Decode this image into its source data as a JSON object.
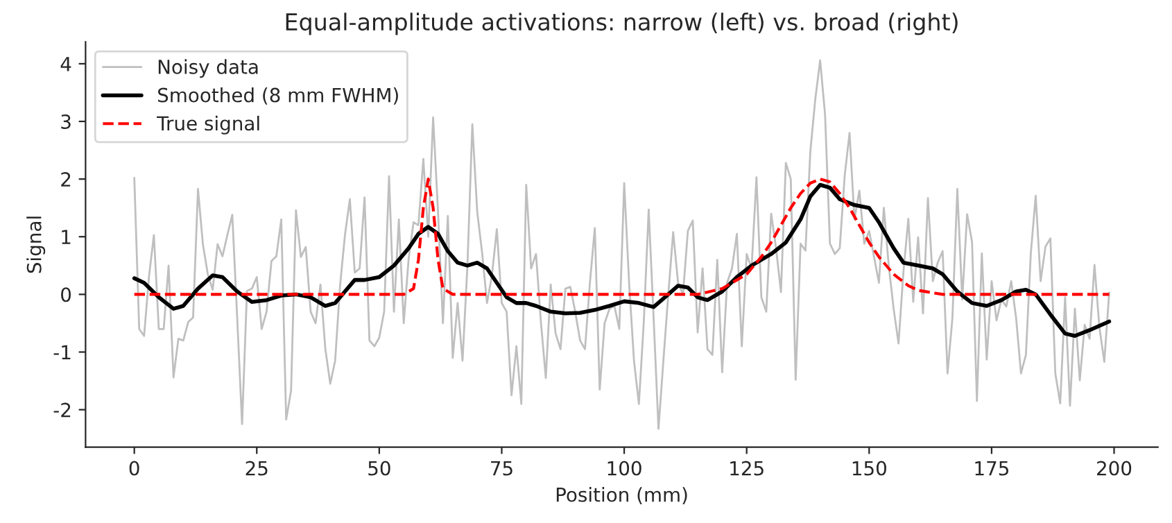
{
  "chart_data": {
    "type": "line",
    "title": "Equal-amplitude activations: narrow (left) vs. broad (right)",
    "xlabel": "Position (mm)",
    "ylabel": "Signal",
    "xlim": [
      -9.95,
      208.95
    ],
    "ylim": [
      -2.65,
      4.38
    ],
    "xticks": [
      0,
      25,
      50,
      75,
      100,
      125,
      150,
      175,
      200
    ],
    "yticks": [
      -2,
      -1,
      0,
      1,
      2,
      3,
      4
    ],
    "grid": false,
    "legend": "top left",
    "series": [
      {
        "name": "Noisy data",
        "color": "#bfbfbf",
        "line_style": "solid",
        "x": [
          0,
          1,
          2,
          3,
          4,
          5,
          6,
          7,
          8,
          9,
          10,
          11,
          12,
          13,
          14,
          15,
          16,
          17,
          18,
          19,
          20,
          21,
          22,
          23,
          24,
          25,
          26,
          27,
          28,
          29,
          30,
          31,
          32,
          33,
          34,
          35,
          36,
          37,
          38,
          39,
          40,
          41,
          42,
          43,
          44,
          45,
          46,
          47,
          48,
          49,
          50,
          51,
          52,
          53,
          54,
          55,
          56,
          57,
          58,
          59,
          60,
          61,
          62,
          63,
          64,
          65,
          66,
          67,
          68,
          69,
          70,
          71,
          72,
          73,
          74,
          75,
          76,
          77,
          78,
          79,
          80,
          81,
          82,
          83,
          84,
          85,
          86,
          87,
          88,
          89,
          90,
          91,
          92,
          93,
          94,
          95,
          96,
          97,
          98,
          99,
          100,
          101,
          102,
          103,
          104,
          105,
          106,
          107,
          108,
          109,
          110,
          111,
          112,
          113,
          114,
          115,
          116,
          117,
          118,
          119,
          120,
          121,
          122,
          123,
          124,
          125,
          126,
          127,
          128,
          129,
          130,
          131,
          132,
          133,
          134,
          135,
          136,
          137,
          138,
          139,
          140,
          141,
          142,
          143,
          144,
          145,
          146,
          147,
          148,
          149,
          150,
          151,
          152,
          153,
          154,
          155,
          156,
          157,
          158,
          159,
          160,
          161,
          162,
          163,
          164,
          165,
          166,
          167,
          168,
          169,
          170,
          171,
          172,
          173,
          174,
          175,
          176,
          177,
          178,
          179,
          180,
          181,
          182,
          183,
          184,
          185,
          186,
          187,
          188,
          189,
          190,
          191,
          192,
          193,
          194,
          195,
          196,
          197,
          198,
          199
        ],
        "values": [
          2.02,
          -0.6,
          -0.72,
          0.31,
          1.03,
          -0.6,
          -0.6,
          0.5,
          -1.44,
          -0.77,
          -0.8,
          -0.48,
          -0.4,
          1.83,
          0.87,
          0.35,
          0.08,
          0.87,
          0.66,
          1.03,
          1.38,
          -0.4,
          -2.25,
          0.06,
          0.1,
          0.3,
          -0.6,
          -0.3,
          0.58,
          0.66,
          1.3,
          -2.17,
          -1.67,
          1.46,
          0.65,
          0.82,
          -0.3,
          -0.5,
          0.17,
          -0.95,
          -1.55,
          -1.15,
          0.15,
          1.03,
          1.65,
          0.38,
          0.45,
          1.68,
          -0.8,
          -0.9,
          -0.75,
          -0.3,
          2.05,
          -0.3,
          1.3,
          -0.5,
          0.62,
          1.25,
          1.2,
          2.35,
          1.0,
          3.07,
          1.43,
          -0.5,
          1.36,
          -1.1,
          -0.15,
          -1.15,
          0.5,
          2.95,
          1.43,
          0.72,
          -0.15,
          0.33,
          1.13,
          -0.15,
          -0.3,
          -1.75,
          -0.9,
          -1.9,
          1.9,
          0.45,
          0.7,
          -0.48,
          -1.45,
          0.17,
          -0.68,
          -0.95,
          0.1,
          0.13,
          -0.3,
          -0.8,
          -0.95,
          0.2,
          1.15,
          -1.65,
          -0.5,
          -0.25,
          -0.2,
          -0.6,
          1.93,
          0.2,
          -1.15,
          -1.9,
          -0.48,
          1.47,
          -0.4,
          -2.33,
          -1.15,
          0,
          1.08,
          0.2,
          0,
          1.1,
          1.28,
          -0.66,
          0.45,
          -0.95,
          -1.05,
          0.6,
          -1.35,
          0.2,
          0.45,
          1.05,
          -0.9,
          0.7,
          0.45,
          2.03,
          -0.05,
          -0.3,
          1.4,
          0.8,
          0.04,
          2.28,
          2.0,
          -1.48,
          0.88,
          0.76,
          2.48,
          3.38,
          4.06,
          3.12,
          0.88,
          0.7,
          0.8,
          2.05,
          2.8,
          1.3,
          1.8,
          0.88,
          1.1,
          0.65,
          0.2,
          1.5,
          0.5,
          -0.25,
          -0.85,
          0.39,
          1.31,
          -0.13,
          0.99,
          -0.33,
          1.67,
          0.23,
          0.55,
          0.75,
          -1.37,
          -0.41,
          1.83,
          -0.09,
          1.39,
          0.91,
          -1.85,
          0.71,
          -1.13,
          0.23,
          -0.45,
          -0.09,
          -0.21,
          0.23,
          -0.41,
          -1.37,
          -1.05,
          0.71,
          1.71,
          0.23,
          0.83,
          0.97,
          -1.37,
          -1.89,
          -0.05,
          -1.93,
          -0.25,
          -1.49,
          -0.53,
          -0.77,
          0.51,
          -0.57,
          -1.17,
          0.03
        ]
      },
      {
        "name": "Smoothed (8 mm FWHM)",
        "color": "#000000",
        "line_style": "solid",
        "x": [
          0,
          2,
          5,
          8,
          10,
          13,
          16,
          18,
          21,
          24,
          27,
          30,
          33,
          36,
          39,
          41,
          43,
          45,
          47,
          50,
          53,
          56,
          58,
          60,
          62,
          64,
          66,
          68,
          70,
          72,
          74,
          76,
          78,
          80,
          82,
          85,
          88,
          91,
          94,
          97,
          100,
          103,
          106,
          109,
          111,
          113,
          115,
          117,
          120,
          123,
          126,
          130,
          133,
          136,
          138,
          140,
          142,
          144,
          147,
          150,
          152,
          155,
          157,
          160,
          163,
          165,
          168,
          171,
          174,
          177,
          180,
          182,
          184,
          187,
          190,
          192,
          195,
          199
        ],
        "values": [
          0.28,
          0.2,
          -0.05,
          -0.25,
          -0.2,
          0.1,
          0.33,
          0.3,
          0.05,
          -0.13,
          -0.1,
          -0.02,
          0.0,
          -0.05,
          -0.2,
          -0.15,
          0.05,
          0.25,
          0.25,
          0.3,
          0.5,
          0.8,
          1.05,
          1.17,
          1.05,
          0.75,
          0.55,
          0.5,
          0.55,
          0.45,
          0.2,
          -0.05,
          -0.15,
          -0.15,
          -0.2,
          -0.3,
          -0.33,
          -0.32,
          -0.27,
          -0.2,
          -0.12,
          -0.15,
          -0.22,
          0.0,
          0.15,
          0.12,
          -0.05,
          -0.1,
          0.05,
          0.3,
          0.5,
          0.7,
          0.9,
          1.3,
          1.7,
          1.9,
          1.85,
          1.65,
          1.55,
          1.5,
          1.25,
          0.8,
          0.55,
          0.5,
          0.45,
          0.35,
          0.05,
          -0.15,
          -0.2,
          -0.1,
          0.05,
          0.08,
          0.0,
          -0.35,
          -0.68,
          -0.72,
          -0.62,
          -0.47
        ]
      },
      {
        "name": "True signal",
        "color": "#ff0000",
        "line_style": "dashed",
        "x": [
          0,
          55,
          57,
          58,
          59,
          60,
          61,
          62,
          63,
          65,
          115,
          120,
          125,
          128,
          130,
          132,
          134,
          136,
          138,
          140,
          142,
          144,
          146,
          148,
          150,
          152,
          155,
          158,
          160,
          165,
          199
        ],
        "values": [
          0,
          0,
          0.1,
          0.6,
          1.5,
          2.0,
          1.5,
          0.6,
          0.1,
          0,
          0,
          0.1,
          0.35,
          0.65,
          0.9,
          1.2,
          1.5,
          1.75,
          1.93,
          2.0,
          1.95,
          1.75,
          1.5,
          1.2,
          0.9,
          0.65,
          0.35,
          0.15,
          0.07,
          0.0,
          0
        ]
      }
    ]
  }
}
